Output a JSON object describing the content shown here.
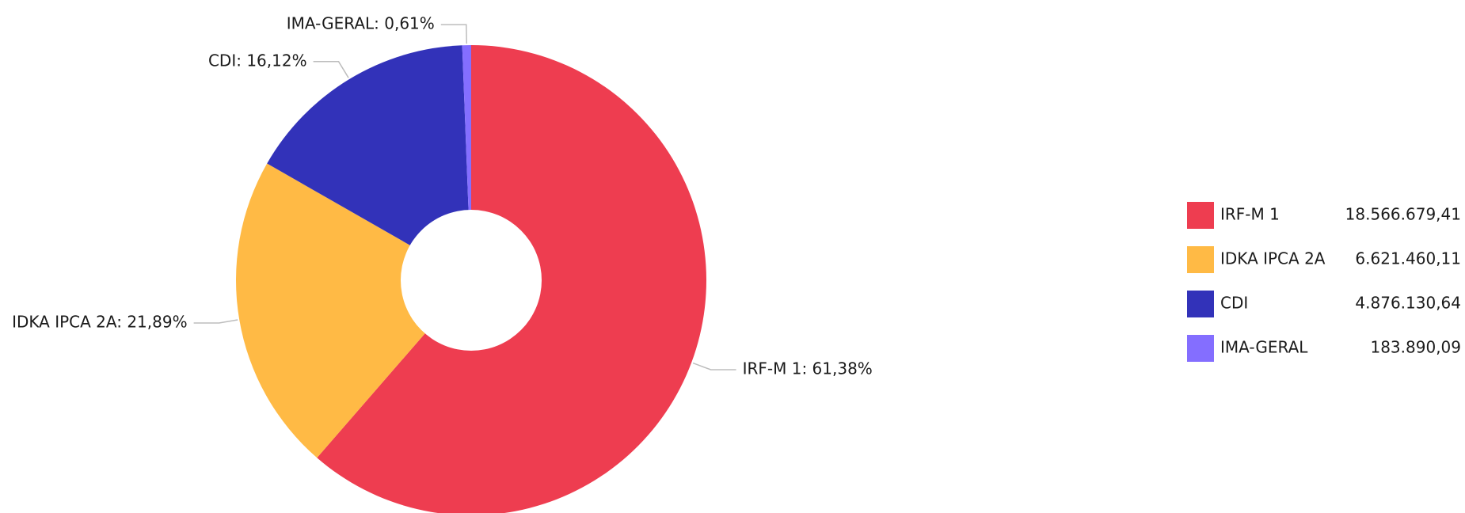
{
  "chart_data": {
    "type": "pie",
    "donut": true,
    "title": "",
    "slices": [
      {
        "label": "IRF-M 1",
        "percent": 61.38,
        "percent_text": "61,38%",
        "value": 18566679.41,
        "value_text": "18.566.679,41",
        "color": "#EE3D50"
      },
      {
        "label": "IDKA IPCA 2A",
        "percent": 21.89,
        "percent_text": "21,89%",
        "value": 6621460.11,
        "value_text": "6.621.460,11",
        "color": "#FFBA45"
      },
      {
        "label": "CDI",
        "percent": 16.12,
        "percent_text": "16,12%",
        "value": 4876130.64,
        "value_text": "4.876.130,64",
        "color": "#3232B9"
      },
      {
        "label": "IMA-GERAL",
        "percent": 0.61,
        "percent_text": "0,61%",
        "value": 183890.09,
        "value_text": "183.890,09",
        "color": "#846EFF"
      }
    ],
    "legend": {
      "position": "right"
    }
  }
}
